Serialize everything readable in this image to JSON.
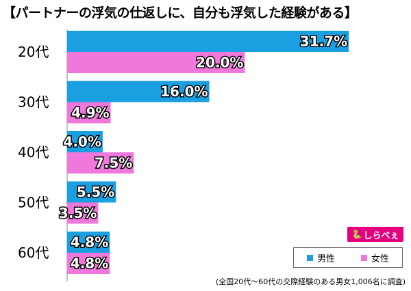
{
  "title": "【パートナーの浮気の仕返しに、自分も浮気した経験がある】",
  "footnote": "(全国20代〜60代の交際経験のある男女1,006名に調査)",
  "logo": {
    "mark": "🐍",
    "text": "しらべぇ"
  },
  "legend": {
    "male": "男性",
    "female": "女性"
  },
  "colors": {
    "male": "#1aa0e0",
    "female": "#f078dc"
  },
  "chart_data": {
    "type": "bar",
    "orientation": "horizontal",
    "categories": [
      "20代",
      "30代",
      "40代",
      "50代",
      "60代"
    ],
    "series": [
      {
        "name": "男性",
        "values": [
          31.7,
          16.0,
          4.0,
          5.5,
          4.8
        ],
        "labels": [
          "31.7%",
          "16.0%",
          "4.0%",
          "5.5%",
          "4.8%"
        ]
      },
      {
        "name": "女性",
        "values": [
          20.0,
          4.9,
          7.5,
          3.5,
          4.8
        ],
        "labels": [
          "20.0%",
          "4.9%",
          "7.5%",
          "3.5%",
          "4.8%"
        ]
      }
    ],
    "xlim": [
      0,
      35
    ],
    "grid": false,
    "legend_position": "bottom-right"
  }
}
